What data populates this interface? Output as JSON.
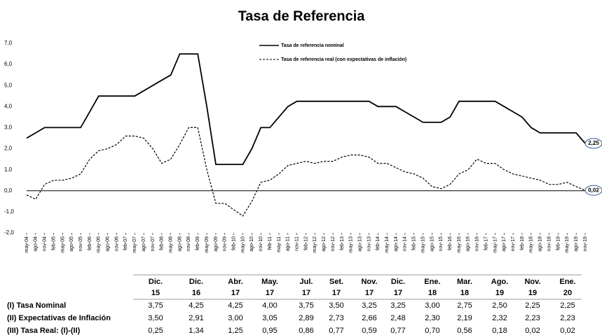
{
  "chart_data": {
    "type": "line",
    "title": "Tasa de Referencia",
    "categories": [
      "may-04",
      "ago-04",
      "nov-04",
      "feb-05",
      "may-05",
      "ago-05",
      "nov-05",
      "feb-06",
      "may-06",
      "ago-06",
      "nov-06",
      "feb-07",
      "may-07",
      "ago-07",
      "nov-07",
      "feb-08",
      "may-08",
      "ago-08",
      "nov-08",
      "feb-09",
      "may-09",
      "ago-09",
      "nov-09",
      "feb-10",
      "may-10",
      "ago-10",
      "nov-10",
      "feb-11",
      "may-11",
      "ago-11",
      "nov-11",
      "feb-12",
      "may-12",
      "ago-12",
      "nov-12",
      "feb-13",
      "may-13",
      "ago-13",
      "nov-13",
      "feb-14",
      "may-14",
      "ago-14",
      "nov-14",
      "feb-15",
      "may-15",
      "ago-15",
      "nov-15",
      "feb-16",
      "may-16",
      "ago-16",
      "nov-16",
      "feb-17",
      "may-17",
      "ago-17",
      "nov-17",
      "feb-18",
      "may-18",
      "ago-18",
      "nov-18",
      "feb-19",
      "may-19",
      "ago-19",
      "nov-19"
    ],
    "series": [
      {
        "name": "Tasa de referencia nominal",
        "color": "#000000",
        "dash": false,
        "values": [
          2.5,
          2.75,
          3.0,
          3.0,
          3.0,
          3.0,
          3.0,
          3.75,
          4.5,
          4.5,
          4.5,
          4.5,
          4.5,
          4.75,
          5.0,
          5.25,
          5.5,
          6.5,
          6.5,
          6.5,
          4.0,
          1.25,
          1.25,
          1.25,
          1.25,
          2.0,
          3.0,
          3.0,
          3.5,
          4.0,
          4.25,
          4.25,
          4.25,
          4.25,
          4.25,
          4.25,
          4.25,
          4.25,
          4.25,
          4.0,
          4.0,
          4.0,
          3.75,
          3.5,
          3.25,
          3.25,
          3.25,
          3.5,
          4.25,
          4.25,
          4.25,
          4.25,
          4.25,
          4.0,
          3.75,
          3.5,
          3.0,
          2.75,
          2.75,
          2.75,
          2.75,
          2.75,
          2.25
        ]
      },
      {
        "name": "Tasa de referencia real (con expectativas de inflación)",
        "color": "#000000",
        "dash": true,
        "values": [
          -0.2,
          -0.4,
          0.3,
          0.5,
          0.5,
          0.6,
          0.8,
          1.5,
          1.9,
          2.0,
          2.2,
          2.6,
          2.6,
          2.5,
          2.0,
          1.3,
          1.5,
          2.2,
          3.0,
          3.0,
          1.0,
          -0.6,
          -0.6,
          -0.9,
          -1.2,
          -0.5,
          0.4,
          0.5,
          0.8,
          1.2,
          1.3,
          1.4,
          1.3,
          1.4,
          1.4,
          1.6,
          1.7,
          1.7,
          1.6,
          1.3,
          1.3,
          1.1,
          0.9,
          0.8,
          0.6,
          0.2,
          0.1,
          0.3,
          0.8,
          1.0,
          1.5,
          1.3,
          1.3,
          1.0,
          0.8,
          0.7,
          0.6,
          0.5,
          0.3,
          0.3,
          0.4,
          0.2,
          0.02
        ]
      }
    ],
    "annotations": [
      {
        "value": 2.25,
        "label": "2,25"
      },
      {
        "value": 0.02,
        "label": "0,02"
      }
    ],
    "ylim": [
      -2,
      7
    ],
    "yticks": [
      {
        "value": -2,
        "label": "-2,0"
      },
      {
        "value": -1,
        "label": "-1,0"
      },
      {
        "value": 0,
        "label": "0,0"
      },
      {
        "value": 1,
        "label": "1,0"
      },
      {
        "value": 2,
        "label": "2,0"
      },
      {
        "value": 3,
        "label": "3,0"
      },
      {
        "value": 4,
        "label": "4,0"
      },
      {
        "value": 5,
        "label": "5,0"
      },
      {
        "value": 6,
        "label": "6,0"
      },
      {
        "value": 7,
        "label": "7,0"
      }
    ],
    "grid": false,
    "legend": "top"
  },
  "table": {
    "columns": [
      [
        "Dic.",
        "15"
      ],
      [
        "Dic.",
        "16"
      ],
      [
        "Abr.",
        "17"
      ],
      [
        "May.",
        "17"
      ],
      [
        "Jul.",
        "17"
      ],
      [
        "Set.",
        "17"
      ],
      [
        "Nov.",
        "17"
      ],
      [
        "Dic.",
        "17"
      ],
      [
        "Ene.",
        "18"
      ],
      [
        "Mar.",
        "18"
      ],
      [
        "Ago.",
        "19"
      ],
      [
        "Nov.",
        "19"
      ],
      [
        "Ene.",
        "20"
      ]
    ],
    "rows": [
      [
        "(I) Tasa Nominal",
        "3,75",
        "4,25",
        "4,25",
        "4,00",
        "3,75",
        "3,50",
        "3,25",
        "3,25",
        "3,00",
        "2,75",
        "2,50",
        "2,25",
        "2,25"
      ],
      [
        "(II) Expectativas de Inflación",
        "3,50",
        "2,91",
        "3,00",
        "3,05",
        "2,89",
        "2,73",
        "2,66",
        "2,48",
        "2,30",
        "2,19",
        "2,32",
        "2,23",
        "2,23"
      ],
      [
        "(III) Tasa Real: (I)-(II)",
        "0,25",
        "1,34",
        "1,25",
        "0,95",
        "0,86",
        "0,77",
        "0,59",
        "0,77",
        "0,70",
        "0,56",
        "0,18",
        "0,02",
        "0,02"
      ]
    ]
  }
}
